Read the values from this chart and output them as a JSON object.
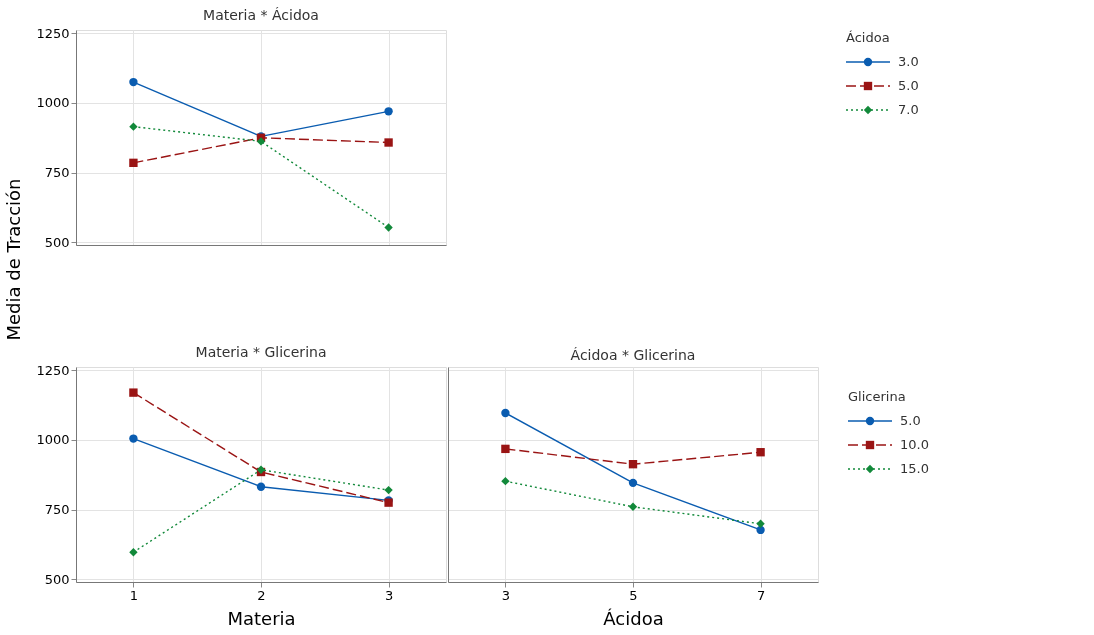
{
  "chart_data": [
    {
      "type": "line",
      "title": "Materia * Ácidoa",
      "ylabel": "Media de Tracción",
      "legend_title": "Ácidoa",
      "legend": "top right",
      "grid": true,
      "tick_labels": "y",
      "categories": [
        "1",
        "2",
        "3"
      ],
      "ylim": [
        490,
        1262
      ],
      "yticks": [
        500,
        750,
        1000,
        1250
      ],
      "series": [
        {
          "name": "3.0",
          "color": "#0a5cb0",
          "marker": "circle",
          "line_style": "solid",
          "values": [
            1075,
            880,
            970
          ]
        },
        {
          "name": "5.0",
          "color": "#9a1414",
          "marker": "square",
          "line_style": "dashed",
          "values": [
            785,
            875,
            858
          ]
        },
        {
          "name": "7.0",
          "color": "#12893a",
          "marker": "diamond",
          "line_style": "dotted",
          "values": [
            915,
            862,
            553
          ]
        }
      ]
    },
    {
      "type": "line",
      "title": "Materia * Glicerina",
      "xlabel": "Materia",
      "legend": false,
      "grid": true,
      "categories": [
        "1",
        "2",
        "3"
      ],
      "ylim": [
        490,
        1262
      ],
      "yticks": [
        500,
        750,
        1000,
        1250
      ],
      "series": [
        {
          "color": "#0a5cb0",
          "marker": "circle",
          "line_style": "solid",
          "values": [
            1005,
            832,
            783
          ]
        },
        {
          "color": "#9a1414",
          "marker": "square",
          "line_style": "dashed",
          "values": [
            1170,
            885,
            775
          ]
        },
        {
          "color": "#12893a",
          "marker": "diamond",
          "line_style": "dotted",
          "values": [
            597,
            893,
            820
          ]
        }
      ]
    },
    {
      "type": "line",
      "title": "Ácidoa * Glicerina",
      "xlabel": "Ácidoa",
      "legend_title": "Glicerina",
      "legend": "right",
      "grid": true,
      "tick_labels": "x",
      "categories": [
        "3",
        "5",
        "7"
      ],
      "ylim": [
        490,
        1262
      ],
      "yticks": [
        500,
        750,
        1000,
        1250
      ],
      "series": [
        {
          "name": "5.0",
          "color": "#0a5cb0",
          "marker": "circle",
          "line_style": "solid",
          "values": [
            1097,
            846,
            677
          ]
        },
        {
          "name": "10.0",
          "color": "#9a1414",
          "marker": "square",
          "line_style": "dashed",
          "values": [
            968,
            913,
            956
          ]
        },
        {
          "name": "15.0",
          "color": "#12893a",
          "marker": "diamond",
          "line_style": "dotted",
          "values": [
            852,
            760,
            699
          ]
        }
      ]
    }
  ]
}
